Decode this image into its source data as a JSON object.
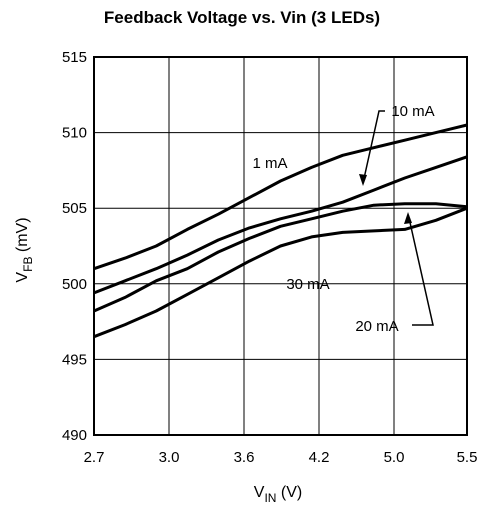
{
  "chart_data": {
    "type": "line",
    "title": "Feedback Voltage vs. Vin (3 LEDs)",
    "xlabel": {
      "main": "V",
      "sub": "IN",
      "unit": " (V)"
    },
    "ylabel": {
      "main": "V",
      "sub": "FB",
      "unit": " (mV)"
    },
    "x_ticks": [
      "2.7",
      "3.0",
      "3.6",
      "4.2",
      "5.0",
      "5.5"
    ],
    "y_ticks": [
      490,
      495,
      500,
      505,
      510,
      515
    ],
    "ylim": [
      490,
      515
    ],
    "grid": true,
    "series": [
      {
        "name": "1 mA",
        "points": [
          [
            0,
            501.0
          ],
          [
            0.25,
            501.7
          ],
          [
            0.5,
            502.5
          ],
          [
            0.75,
            503.6
          ],
          [
            1,
            504.6
          ],
          [
            1.25,
            505.7
          ],
          [
            1.5,
            506.8
          ],
          [
            1.75,
            507.7
          ],
          [
            2,
            508.5
          ],
          [
            2.25,
            509.0
          ],
          [
            2.5,
            509.5
          ],
          [
            2.75,
            510.0
          ],
          [
            3,
            510.5
          ]
        ]
      },
      {
        "name": "10 mA",
        "points": [
          [
            0,
            499.4
          ],
          [
            0.25,
            500.2
          ],
          [
            0.5,
            501.0
          ],
          [
            0.75,
            501.9
          ],
          [
            1,
            502.9
          ],
          [
            1.25,
            503.7
          ],
          [
            1.5,
            504.3
          ],
          [
            1.75,
            504.8
          ],
          [
            2,
            505.4
          ],
          [
            2.25,
            506.2
          ],
          [
            2.5,
            507.0
          ],
          [
            2.75,
            507.7
          ],
          [
            3,
            508.4
          ]
        ]
      },
      {
        "name": "20 mA",
        "points": [
          [
            0,
            498.2
          ],
          [
            0.25,
            499.1
          ],
          [
            0.5,
            500.2
          ],
          [
            0.75,
            501.0
          ],
          [
            1,
            502.1
          ],
          [
            1.25,
            503.0
          ],
          [
            1.5,
            503.8
          ],
          [
            1.75,
            504.3
          ],
          [
            2,
            504.8
          ],
          [
            2.25,
            505.2
          ],
          [
            2.5,
            505.3
          ],
          [
            2.75,
            505.3
          ],
          [
            3,
            505.1
          ]
        ]
      },
      {
        "name": "30 mA",
        "points": [
          [
            0,
            496.5
          ],
          [
            0.25,
            497.3
          ],
          [
            0.5,
            498.2
          ],
          [
            0.75,
            499.3
          ],
          [
            1,
            500.4
          ],
          [
            1.25,
            501.5
          ],
          [
            1.5,
            502.5
          ],
          [
            1.75,
            503.1
          ],
          [
            2,
            503.4
          ],
          [
            2.25,
            503.5
          ],
          [
            2.5,
            503.6
          ],
          [
            2.75,
            504.2
          ],
          [
            3,
            505.0
          ]
        ]
      }
    ],
    "annotations": [
      "1 mA",
      "10 mA",
      "20 mA",
      "30 mA"
    ]
  }
}
